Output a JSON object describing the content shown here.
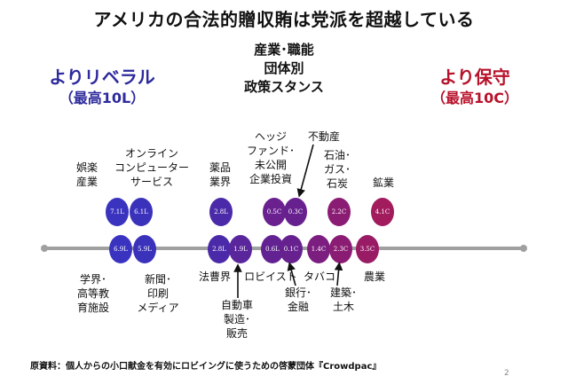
{
  "title": "アメリカの合法的贈収賄は党派を超越している",
  "center_heading": [
    "産業･職能",
    "団体別",
    "政策スタンス"
  ],
  "left_heading": {
    "main": "よりリベラル",
    "sub": "（最高10L）"
  },
  "right_heading": {
    "main": "より保守",
    "sub": "（最高10C）"
  },
  "colors": {
    "liberal": "#3a2fb5",
    "conservative": "#9c1848",
    "axis": "#a0a0a0"
  },
  "top_row": [
    {
      "value": "7.1L",
      "color": "#3a33c0"
    },
    {
      "value": "6.1L",
      "color": "#3b32bc"
    },
    {
      "value": "2.8L",
      "color": "#4a2aa8"
    },
    {
      "value": "0.5C",
      "color": "#6a208f"
    },
    {
      "value": "0.3C",
      "color": "#66218f"
    },
    {
      "value": "2.2C",
      "color": "#8a1c73"
    },
    {
      "value": "4.1C",
      "color": "#a11b5d"
    }
  ],
  "bottom_row": [
    {
      "value": "6.9L",
      "color": "#3a33c0"
    },
    {
      "value": "5.9L",
      "color": "#3b32bc"
    },
    {
      "value": "2.8L",
      "color": "#4a2aa8"
    },
    {
      "value": "1.9L",
      "color": "#5a269c"
    },
    {
      "value": "0.6L",
      "color": "#632292"
    },
    {
      "value": "0.1C",
      "color": "#66218f"
    },
    {
      "value": "1.4C",
      "color": "#7c1d80"
    },
    {
      "value": "2.3C",
      "color": "#8a1c73"
    },
    {
      "value": "3.5C",
      "color": "#991a65"
    }
  ],
  "labels": {
    "entertainment": [
      "娯楽",
      "産業"
    ],
    "online": [
      "オンライン",
      "コンピューター",
      "サービス"
    ],
    "pharma": [
      "薬品",
      "業界"
    ],
    "hedge": [
      "ヘッジ",
      "ファンド･",
      "未公開",
      "企業投資"
    ],
    "real_estate": "不動産",
    "oil": [
      "石油･",
      "ガス･",
      "石炭"
    ],
    "mining": "鉱業",
    "education": [
      "学界･",
      "高等教",
      "育施設"
    ],
    "media": [
      "新聞･",
      "印刷",
      "メディア"
    ],
    "legal": "法曹界",
    "auto": [
      "自動車",
      "製造･",
      "販売"
    ],
    "lobbyist": "ロビイスト",
    "tobacco": "タバコ",
    "agriculture": "農業",
    "banking": [
      "銀行･",
      "金融"
    ],
    "construction": [
      "建築･",
      "土木"
    ]
  },
  "footer": "原資料：個人からの小口献金を有効にロビイングに使うための啓蒙団体『Crowdpac』",
  "page_number": "2"
}
